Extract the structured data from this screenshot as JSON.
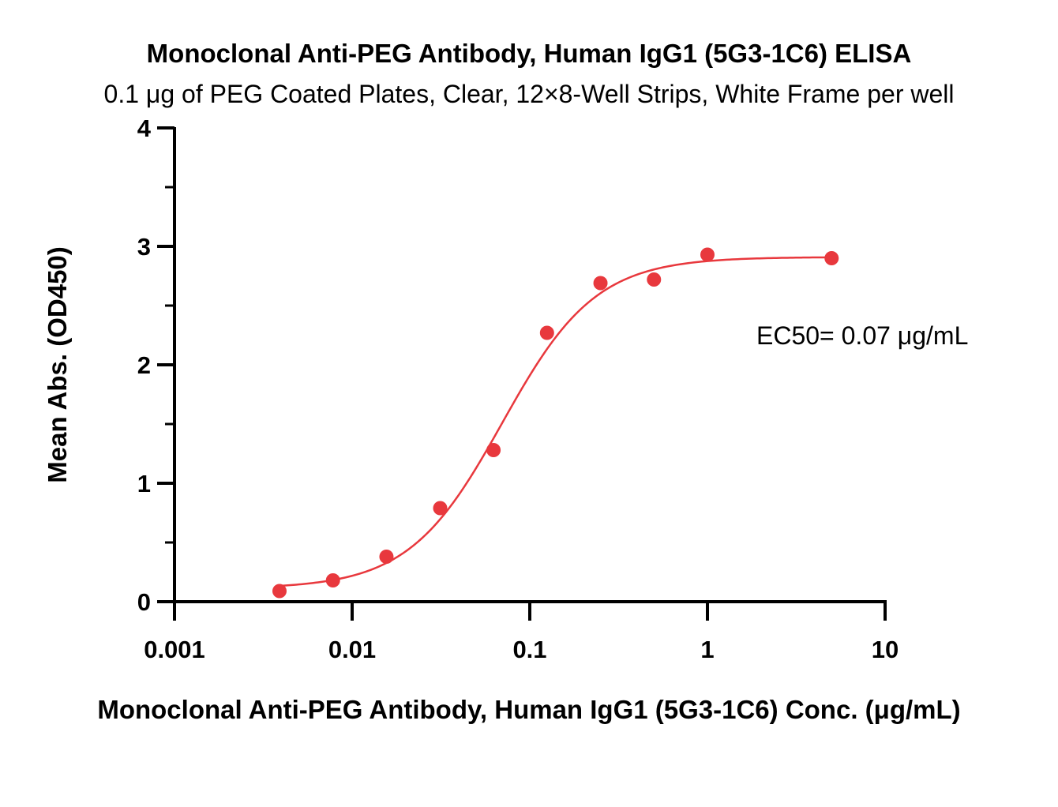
{
  "chart_data": {
    "type": "scatter",
    "title": "Monoclonal Anti-PEG Antibody, Human IgG1 (5G3-1C6) ELISA",
    "subtitle": "0.1 μg of PEG Coated Plates, Clear, 12×8-Well Strips, White Frame per well",
    "xlabel": "Monoclonal Anti-PEG Antibody, Human IgG1 (5G3-1C6) Conc. (μg/mL)",
    "ylabel": "Mean Abs. (OD450)",
    "xscale": "log",
    "xlim": [
      0.001,
      10
    ],
    "ylim": [
      0,
      4
    ],
    "xticks": [
      {
        "value": 0.001,
        "label": "0.001"
      },
      {
        "value": 0.01,
        "label": "0.01"
      },
      {
        "value": 0.1,
        "label": "0.1"
      },
      {
        "value": 1,
        "label": "1"
      },
      {
        "value": 10,
        "label": "10"
      }
    ],
    "yticks": [
      {
        "value": 0,
        "label": "0"
      },
      {
        "value": 1,
        "label": "1"
      },
      {
        "value": 2,
        "label": "2"
      },
      {
        "value": 3,
        "label": "3"
      },
      {
        "value": 4,
        "label": "4"
      }
    ],
    "grid": false,
    "series": [
      {
        "color": "#e8383d",
        "points": [
          {
            "x": 0.0039,
            "y": 0.09
          },
          {
            "x": 0.0078,
            "y": 0.18
          },
          {
            "x": 0.0156,
            "y": 0.38
          },
          {
            "x": 0.0313,
            "y": 0.79
          },
          {
            "x": 0.0625,
            "y": 1.28
          },
          {
            "x": 0.125,
            "y": 2.27
          },
          {
            "x": 0.25,
            "y": 2.69
          },
          {
            "x": 0.5,
            "y": 2.72
          },
          {
            "x": 1,
            "y": 2.93
          },
          {
            "x": 5,
            "y": 2.9
          }
        ],
        "fit": {
          "model": "4PL",
          "bottom": 0.11,
          "top": 2.91,
          "ec50": 0.07,
          "hill": 1.65
        }
      }
    ],
    "annotations": [
      {
        "text": "EC50= 0.07 μg/mL"
      }
    ]
  }
}
